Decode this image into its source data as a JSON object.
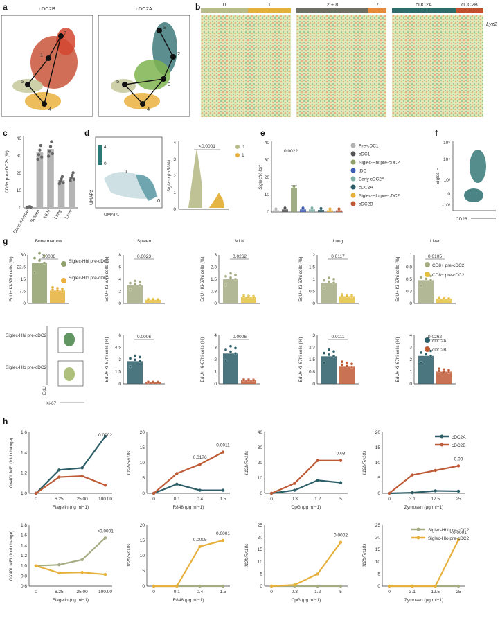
{
  "panels": {
    "a": {
      "letter": "a",
      "titles": [
        "cDC2B",
        "cDC2A"
      ],
      "left_nodes": [
        "7",
        "1",
        "5",
        "4"
      ],
      "right_nodes": [
        "8",
        "2",
        "5",
        "0",
        "4"
      ]
    },
    "b": {
      "letter": "b",
      "groups": [
        [
          "0",
          "1"
        ],
        [
          "2 + 8",
          "7"
        ],
        [
          "cDC2A",
          "cDC2B"
        ]
      ],
      "gene_label": "Lyz2"
    },
    "c": {
      "letter": "c",
      "ylabel": "CD8+ pre-cDC2s (%)",
      "categories": [
        "Bone marrow",
        "Spleen",
        "MLN",
        "Lung",
        "Liver"
      ],
      "yticks": [
        "0",
        "10",
        "20",
        "30",
        "40"
      ]
    },
    "d": {
      "letter": "d",
      "scale_max": "4",
      "scale_min": "0",
      "clusters": [
        "1",
        "0"
      ],
      "xlabel": "UMAP1",
      "ylabel": "UMAP2",
      "violin_ylabel": "Siglech (mRNA)",
      "pval": "<0.0001",
      "legend": [
        "0",
        "1"
      ],
      "yticks": [
        "0",
        "1",
        "2",
        "3",
        "4"
      ]
    },
    "e": {
      "letter": "e",
      "ylabel": "Siglech/Hprt",
      "pval": "0.0022",
      "yticks": [
        "0",
        "10",
        "20",
        "30",
        "40"
      ],
      "legend": [
        "Pre-cDC1",
        "cDC1",
        "Siglec-Hhi pre-cDC2",
        "tDC",
        "Early cDC2A",
        "cDC2A",
        "Siglec-Hlo pre-cDC2",
        "cDC2B"
      ]
    },
    "f": {
      "letter": "f",
      "ylabel": "Siglec-H",
      "xlabel": "CD26",
      "yticks": [
        "10⁵",
        "10⁴",
        "10³",
        "0",
        "-10³"
      ]
    },
    "g": {
      "letter": "g",
      "titles": [
        "Bone marrow",
        "Spleen",
        "MLN",
        "Lung",
        "Liver"
      ],
      "ylabel": "EdU+ Ki-67hi cells (%)",
      "top_pvals": [
        "0.0006",
        "0.0023",
        "0.0262",
        "0.0117",
        "0.0105"
      ],
      "bottom_pvals": [
        "0.0006",
        "0.0006",
        "0.0111",
        "0.0262"
      ],
      "legend_siglec": [
        "Siglec-Hhi pre-cDC2",
        "Siglec-Hlo pre-cDC2"
      ],
      "legend_cd8": [
        "CD8+ pre-cDC2",
        "CD8− pre-cDC2"
      ],
      "legend_cdc2": [
        "cDC2A",
        "cDC2B"
      ],
      "flow_hi": "Siglec-Hhi pre-cDC2",
      "flow_lo": "Siglec-Hlo pre-cDC2",
      "flow_xlabel": "Ki-67",
      "flow_ylabel": "EdU"
    },
    "h": {
      "letter": "h",
      "legend_top": [
        "cDC2A",
        "cDC2B"
      ],
      "legend_bottom": [
        "Siglec-Hhi pre-cDC2",
        "Siglec-Hlo pre-cDC2"
      ],
      "ox40l_label": "OX40L MFI (fold change)",
      "il12_label": "Il12b/Rn18s"
    }
  },
  "chart_data": [
    {
      "id": "c",
      "type": "bar",
      "categories": [
        "Bone marrow",
        "Spleen",
        "MLN",
        "Lung",
        "Liver"
      ],
      "values": [
        0.5,
        32,
        34,
        16,
        18
      ],
      "ylabel": "CD8+ pre-cDC2s (%)",
      "ylim": [
        0,
        40
      ]
    },
    {
      "id": "e",
      "type": "bar",
      "categories": [
        "Pre-cDC1",
        "cDC1",
        "Siglec-Hhi pre-cDC2",
        "tDC",
        "Early cDC2A",
        "cDC2A",
        "Siglec-Hlo pre-cDC2",
        "cDC2B"
      ],
      "values": [
        1,
        1.5,
        14,
        1.5,
        1.5,
        1.2,
        1,
        1
      ],
      "ylabel": "Siglech/Hprt",
      "ylim": [
        0,
        40
      ]
    },
    {
      "id": "g-top",
      "type": "bar",
      "categories": [
        "Bone marrow",
        "Spleen",
        "MLN",
        "Lung",
        "Liver"
      ],
      "ymax": [
        30,
        8,
        3,
        2,
        1
      ],
      "series": [
        {
          "name": "Siglec-Hhi / CD8+ pre-cDC2",
          "values": [
            25,
            3,
            1.5,
            0.85,
            0.48
          ]
        },
        {
          "name": "Siglec-Hlo / CD8− pre-cDC2",
          "values": [
            8,
            0.6,
            0.4,
            0.3,
            0.1
          ]
        }
      ]
    },
    {
      "id": "g-bottom",
      "type": "bar",
      "categories": [
        "Spleen",
        "MLN",
        "Lung",
        "Liver"
      ],
      "ymax": [
        6,
        4,
        3,
        4
      ],
      "series": [
        {
          "name": "cDC2A",
          "values": [
            2.8,
            2.5,
            1.7,
            2.3
          ]
        },
        {
          "name": "cDC2B",
          "values": [
            0.2,
            0.3,
            1.1,
            1.0
          ]
        }
      ]
    },
    {
      "id": "h-top",
      "type": "line",
      "plots": [
        {
          "xlabel": "Flagelin (ng ml−1)",
          "x": [
            "0",
            "6.25",
            "25.00",
            "100.00"
          ],
          "ylim": [
            1.0,
            1.6
          ],
          "yticks": [
            "1.0",
            "1.2",
            "1.4",
            "1.6"
          ],
          "ylabel": "OX40L MFI (fold change)",
          "series": [
            {
              "name": "cDC2A",
              "values": [
                1.0,
                1.23,
                1.25,
                1.56
              ]
            },
            {
              "name": "cDC2B",
              "values": [
                1.0,
                1.16,
                1.17,
                1.08
              ]
            }
          ],
          "pvals": [
            {
              "x": 3,
              "label": "0.0002"
            }
          ]
        },
        {
          "xlabel": "R848 (μg ml−1)",
          "x": [
            "0",
            "0.1",
            "0.4",
            "1.5"
          ],
          "ylim": [
            0,
            20
          ],
          "yticks": [
            "0",
            "5",
            "10",
            "15",
            "20"
          ],
          "ylabel": "Il12b/Rn18s",
          "series": [
            {
              "name": "cDC2A",
              "values": [
                0,
                3,
                1,
                1
              ]
            },
            {
              "name": "cDC2B",
              "values": [
                0,
                6.5,
                9.5,
                13.5
              ]
            }
          ],
          "pvals": [
            {
              "x": 2,
              "label": "0.0176"
            },
            {
              "x": 3,
              "label": "0.0011"
            }
          ]
        },
        {
          "xlabel": "CpG (μg ml−1)",
          "x": [
            "0",
            "0.3",
            "1.2",
            "5"
          ],
          "ylim": [
            0,
            40
          ],
          "yticks": [
            "0",
            "10",
            "20",
            "30",
            "40"
          ],
          "ylabel": "Il12b/Rn18s",
          "series": [
            {
              "name": "cDC2A",
              "values": [
                0,
                2,
                8.5,
                7
              ]
            },
            {
              "name": "cDC2B",
              "values": [
                0,
                6.5,
                21.5,
                21.5
              ]
            }
          ],
          "pvals": [
            {
              "x": 3,
              "label": "0.08"
            }
          ]
        },
        {
          "xlabel": "Zymosan (μg ml−1)",
          "x": [
            "0",
            "3.1",
            "12.5",
            "25"
          ],
          "ylim": [
            0,
            20
          ],
          "yticks": [
            "0",
            "5",
            "10",
            "15",
            "20"
          ],
          "ylabel": "Il12b/Rn18s",
          "series": [
            {
              "name": "cDC2A",
              "values": [
                0,
                0.2,
                0.8,
                0.7
              ]
            },
            {
              "name": "cDC2B",
              "values": [
                0,
                6,
                7.5,
                9
              ]
            }
          ],
          "pvals": [
            {
              "x": 3,
              "label": "0.09"
            }
          ]
        }
      ]
    },
    {
      "id": "h-bottom",
      "type": "line",
      "plots": [
        {
          "xlabel": "Flagelin (ng ml−1)",
          "x": [
            "0",
            "6.25",
            "25.00",
            "100.00"
          ],
          "ylim": [
            0.6,
            1.8
          ],
          "yticks": [
            "0.6",
            "0.8",
            "1.0",
            "1.2",
            "1.4",
            "1.6",
            "1.8"
          ],
          "ylabel": "OX40L MFI (fold change)",
          "series": [
            {
              "name": "Siglec-Hhi pre-cDC2",
              "values": [
                1.0,
                1.02,
                1.12,
                1.55
              ]
            },
            {
              "name": "Siglec-Hlo pre-cDC2",
              "values": [
                1.0,
                0.86,
                0.87,
                0.83
              ]
            }
          ],
          "pvals": [
            {
              "x": 3,
              "label": "<0.0001"
            }
          ]
        },
        {
          "xlabel": "R848 (μg ml−1)",
          "x": [
            "0",
            "0.1",
            "0.4",
            "1.5"
          ],
          "ylim": [
            0,
            20
          ],
          "yticks": [
            "0",
            "5",
            "10",
            "15",
            "20"
          ],
          "ylabel": "Il12b/Rn18s",
          "series": [
            {
              "name": "Siglec-Hhi pre-cDC2",
              "values": [
                0,
                0,
                0,
                0
              ]
            },
            {
              "name": "Siglec-Hlo pre-cDC2",
              "values": [
                0,
                0,
                13,
                15
              ]
            }
          ],
          "pvals": [
            {
              "x": 2,
              "label": "0.0005"
            },
            {
              "x": 3,
              "label": "0.0001"
            }
          ]
        },
        {
          "xlabel": "CpG (μg ml−1)",
          "x": [
            "0",
            "0.3",
            "1.2",
            "5"
          ],
          "ylim": [
            0,
            25
          ],
          "yticks": [
            "0",
            "5",
            "10",
            "15",
            "20",
            "25"
          ],
          "ylabel": "Il12b/Rn18s",
          "series": [
            {
              "name": "Siglec-Hhi pre-cDC2",
              "values": [
                0,
                0,
                0,
                0
              ]
            },
            {
              "name": "Siglec-Hlo pre-cDC2",
              "values": [
                0,
                0.5,
                5,
                18
              ]
            }
          ],
          "pvals": [
            {
              "x": 3,
              "label": "0.0002"
            }
          ]
        },
        {
          "xlabel": "Zymosan (μg ml−1)",
          "x": [
            "0",
            "3.1",
            "12.5",
            "25"
          ],
          "ylim": [
            0,
            25
          ],
          "yticks": [
            "0",
            "5",
            "10",
            "15",
            "20",
            "25"
          ],
          "ylabel": "Il12b/Rn18s",
          "series": [
            {
              "name": "Siglec-Hhi pre-cDC2",
              "values": [
                0,
                0,
                0,
                0
              ]
            },
            {
              "name": "Siglec-Hlo pre-cDC2",
              "values": [
                0,
                0,
                0,
                19
              ]
            }
          ],
          "pvals": [
            {
              "x": 3,
              "label": "<0.0001"
            }
          ]
        }
      ]
    }
  ],
  "colors": {
    "cdc2a": "#2d5e68",
    "cdc2b": "#bf5a36",
    "hi": "#8fa06b",
    "lo": "#e6b03a",
    "cd8pos": "#a5ab83",
    "cd8neg": "#e3c040",
    "grey": "#b5b5b5",
    "darkgrey": "#666666"
  }
}
